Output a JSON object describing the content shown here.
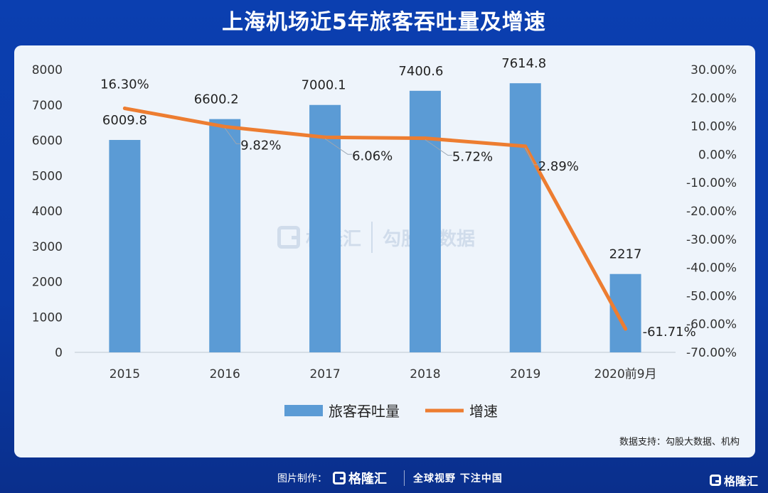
{
  "title": "上海机场近5年旅客吞吐量及增速",
  "source": "数据支持：勾股大数据、机构",
  "footer": {
    "made_by": "图片制作：",
    "logo_text": "格隆汇",
    "slogan": "全球视野 下注中国"
  },
  "watermark": {
    "brand": "格隆汇",
    "partner": "勾股大数据"
  },
  "corner_logo": "格隆汇",
  "colors": {
    "bar": "#5b9bd5",
    "line": "#ed7d31",
    "background": "#0b3fb0",
    "panel": "#eef4fb"
  },
  "chart_data": {
    "type": "bar",
    "categories": [
      "2015",
      "2016",
      "2017",
      "2018",
      "2019",
      "2020前9月"
    ],
    "series": [
      {
        "name": "旅客吞吐量",
        "type": "bar",
        "axis": "left",
        "values": [
          6009.8,
          6600.2,
          7000.1,
          7400.6,
          7614.8,
          2217
        ],
        "labels": [
          "6009.8",
          "6600.2",
          "7000.1",
          "7400.6",
          "7614.8",
          "2217"
        ]
      },
      {
        "name": "增速",
        "type": "line",
        "axis": "right",
        "values": [
          16.3,
          9.82,
          6.06,
          5.72,
          2.89,
          -61.71
        ],
        "labels": [
          "16.30%",
          "9.82%",
          "6.06%",
          "5.72%",
          "2.89%",
          "-61.71%"
        ]
      }
    ],
    "y_left": {
      "min": 0,
      "max": 8000,
      "ticks": [
        "0",
        "1000",
        "2000",
        "3000",
        "4000",
        "5000",
        "6000",
        "7000",
        "8000"
      ]
    },
    "y_right": {
      "min": -70,
      "max": 30,
      "ticks": [
        "-70.00%",
        "-60.00%",
        "-50.00%",
        "-40.00%",
        "-30.00%",
        "-20.00%",
        "-10.00%",
        "0.00%",
        "10.00%",
        "20.00%",
        "30.00%"
      ]
    },
    "legend_position": "bottom",
    "grid": false
  }
}
